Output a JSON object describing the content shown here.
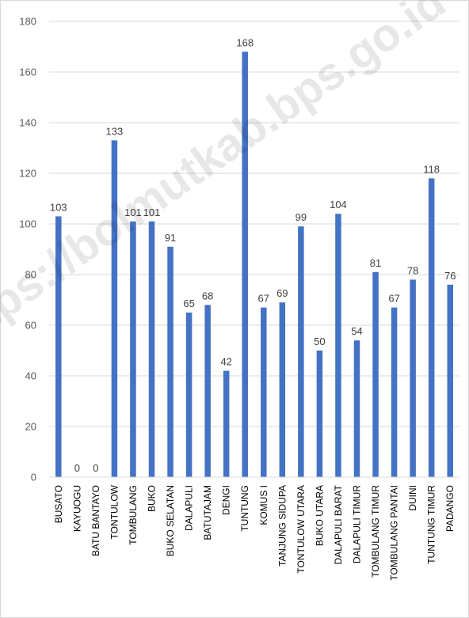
{
  "chart_data": {
    "type": "bar",
    "categories": [
      "BUSATO",
      "KAYUOGU",
      "BATU BANTAYO",
      "TONTULOW",
      "TOMBULANG",
      "BUKO",
      "BUKO SELATAN",
      "DALAPULI",
      "BATUTAJAM",
      "DENGI",
      "TUNTUNG",
      "KOMUS I",
      "TANJUNG SIDUPA",
      "TONTULOW UTARA",
      "BUKO UTARA",
      "DALAPULI BARAT",
      "DALAPULI TIMUR",
      "TOMBULANG TIMUR",
      "TOMBULANG PANTAI",
      "DUINI",
      "TUNTUNG TIMUR",
      "PADANGO"
    ],
    "values": [
      103,
      0,
      0,
      133,
      101,
      101,
      91,
      65,
      68,
      42,
      168,
      67,
      69,
      99,
      50,
      104,
      54,
      81,
      67,
      78,
      118,
      76
    ],
    "yticks": [
      0,
      20,
      40,
      60,
      80,
      100,
      120,
      140,
      160,
      180
    ],
    "ylim": [
      0,
      180
    ],
    "grid": true,
    "legend": "none",
    "bar_color": "#4472c4",
    "gridline_color": "#d9d9d9",
    "title": "",
    "xlabel": "",
    "ylabel": ""
  },
  "watermark": {
    "text": "https://bolmutkab.bps.go.id"
  }
}
